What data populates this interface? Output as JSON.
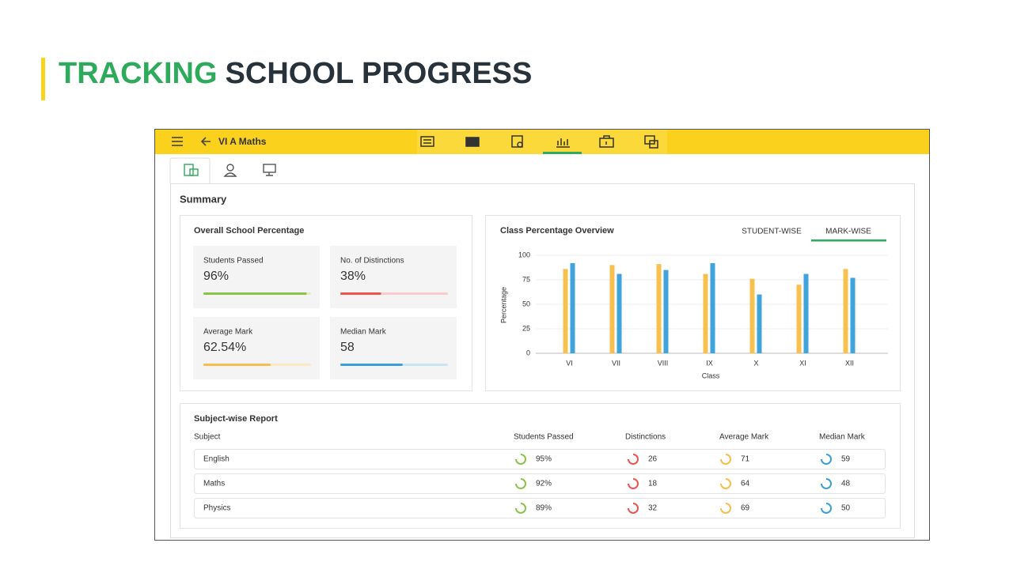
{
  "header": {
    "title_accent": "TRACKING",
    "title_rest": "SCHOOL PROGRESS"
  },
  "toolbar": {
    "title": "VI A Maths"
  },
  "summary": {
    "title": "Summary",
    "overall": {
      "title": "Overall School Percentage",
      "cards": [
        {
          "label": "Students Passed",
          "value": 96,
          "value_label": "96%",
          "color": "#8bc34a",
          "track": "#dcefc8"
        },
        {
          "label": "No. of Distinctions",
          "value": 38,
          "value_label": "38%",
          "color": "#ef5350",
          "track": "#f8cccc"
        },
        {
          "label": "Average Mark",
          "value": 62.54,
          "value_label": "62.54%",
          "color": "#f6bd4f",
          "track": "#fbe8c4"
        },
        {
          "label": "Median Mark",
          "value": 58,
          "value_label": "58",
          "color": "#3a9fd8",
          "track": "#cbe4f3"
        }
      ]
    }
  },
  "chart_data": {
    "type": "bar",
    "title": "Class Percentage Overview",
    "tabs": [
      "STUDENT-WISE",
      "MARK-WISE"
    ],
    "categories": [
      "VI",
      "VII",
      "VIII",
      "IX",
      "X",
      "XI",
      "XII"
    ],
    "series": [
      {
        "color": "#f7c04f",
        "values": [
          86,
          90,
          91,
          81,
          76,
          70,
          86
        ]
      },
      {
        "color": "#3fa3dc",
        "values": [
          92,
          81,
          85,
          92,
          60,
          81,
          77
        ]
      }
    ],
    "xlabel": "Class",
    "ylabel": "Percentage",
    "ylim": [
      0,
      100
    ],
    "yticks": [
      0,
      25,
      50,
      75,
      100
    ],
    "grid": true
  },
  "report": {
    "title": "Subject-wise Report",
    "columns": [
      "Subject",
      "Students Passed",
      "Distinctions",
      "Average Mark",
      "Median Mark"
    ],
    "rows": [
      [
        "English",
        "95%",
        "26",
        "71",
        "59"
      ],
      [
        "Maths",
        "92%",
        "18",
        "64",
        "48"
      ],
      [
        "Physics",
        "89%",
        "32",
        "69",
        "50"
      ]
    ]
  }
}
